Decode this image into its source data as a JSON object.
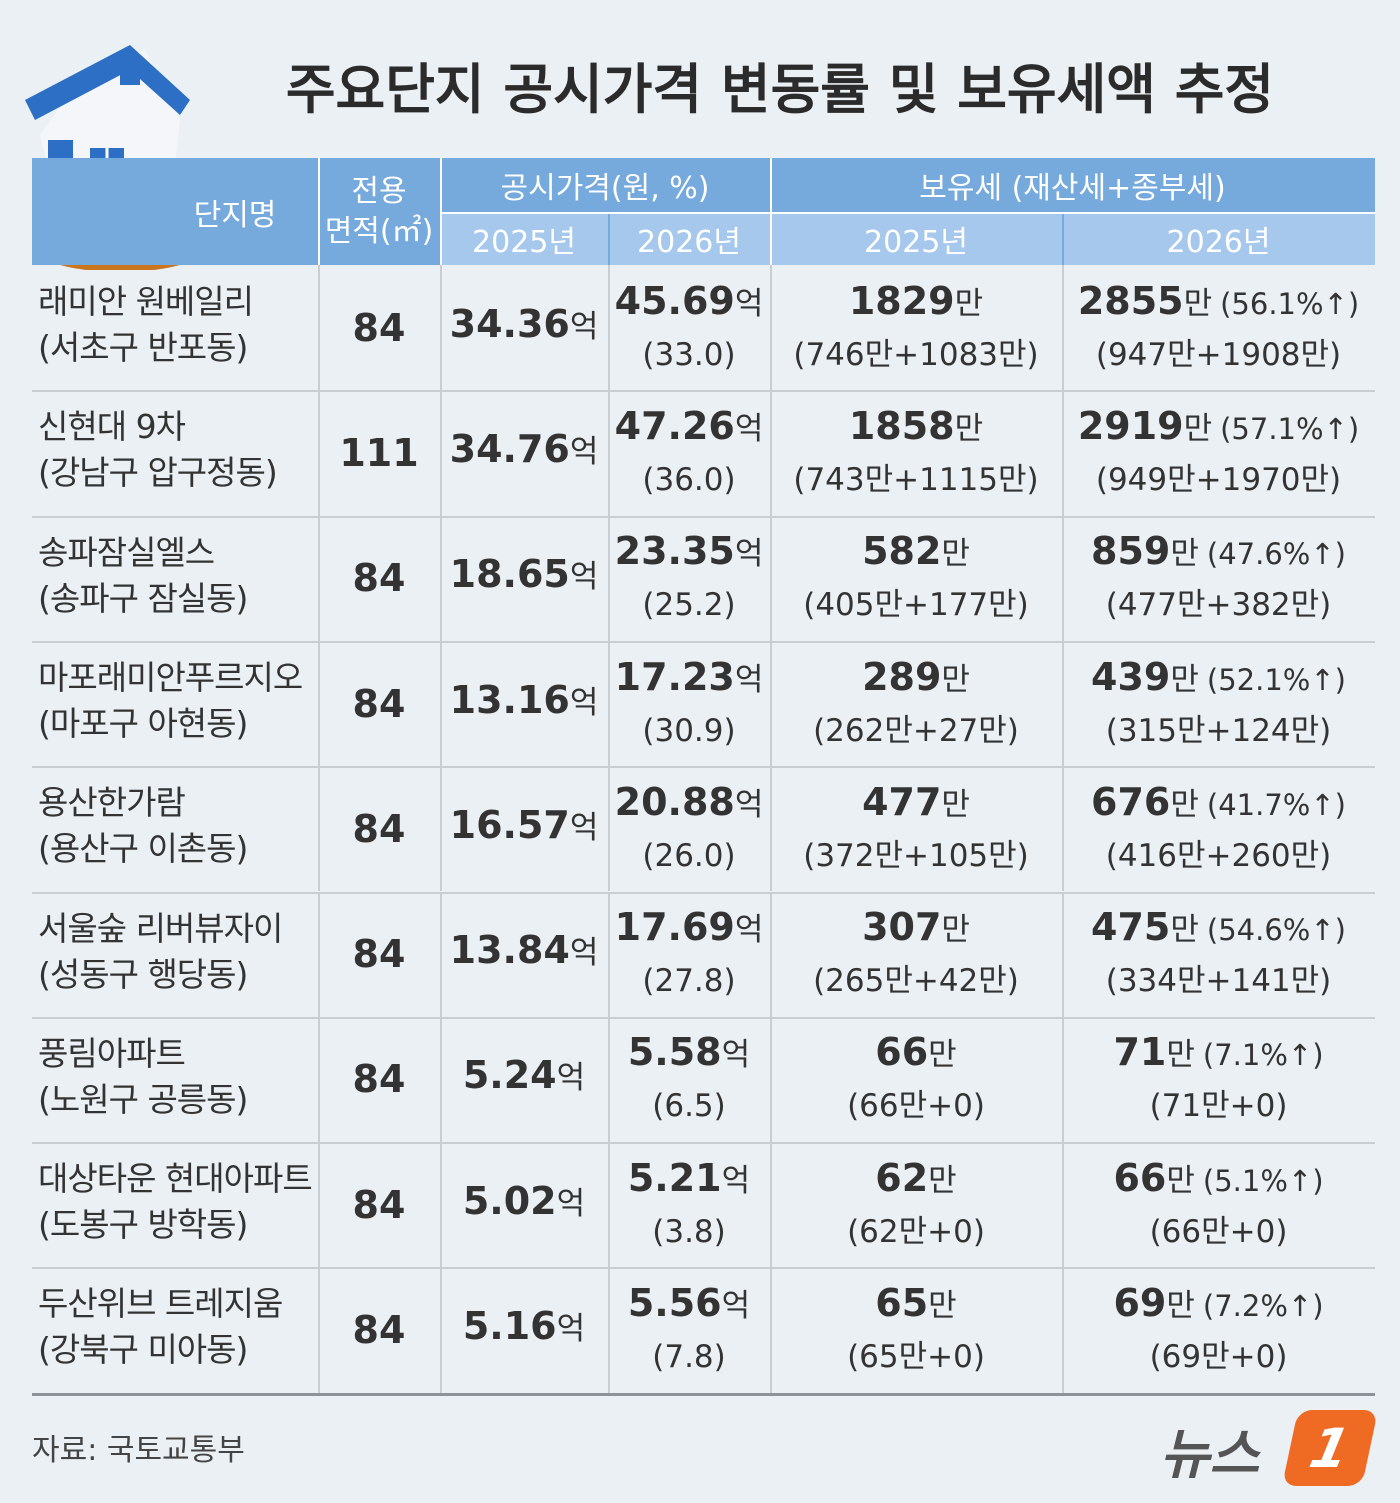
{
  "title": "주요단지 공시가격 변동률 및 보유세액 추정",
  "header": {
    "name": "단지명",
    "area": [
      "전용",
      "면적(㎡)"
    ],
    "price": "공시가격(원, %)",
    "tax": "보유세 (재산세+종부세)",
    "years": [
      "2025년",
      "2026년"
    ]
  },
  "units": {
    "price": "억",
    "tax": "만"
  },
  "table": {
    "rows": [
      {
        "name": "래미안 원베일리",
        "location": "(서초구 반포동)",
        "area": "84",
        "price_2025": "34.36",
        "price_2026": "45.69",
        "price_change": "(33.0)",
        "tax_2025": "1829",
        "tax_2025_detail": "(746만+1083만)",
        "tax_2026": "2855",
        "tax_2026_change": "(56.1%↑)",
        "tax_2026_detail": "(947만+1908만)"
      },
      {
        "name": "신현대 9차",
        "location": "(강남구 압구정동)",
        "area": "111",
        "price_2025": "34.76",
        "price_2026": "47.26",
        "price_change": "(36.0)",
        "tax_2025": "1858",
        "tax_2025_detail": "(743만+1115만)",
        "tax_2026": "2919",
        "tax_2026_change": "(57.1%↑)",
        "tax_2026_detail": "(949만+1970만)"
      },
      {
        "name": "송파잠실엘스",
        "location": "(송파구 잠실동)",
        "area": "84",
        "price_2025": "18.65",
        "price_2026": "23.35",
        "price_change": "(25.2)",
        "tax_2025": "582",
        "tax_2025_detail": "(405만+177만)",
        "tax_2026": "859",
        "tax_2026_change": "(47.6%↑)",
        "tax_2026_detail": "(477만+382만)"
      },
      {
        "name": "마포래미안푸르지오",
        "location": "(마포구 아현동)",
        "area": "84",
        "price_2025": "13.16",
        "price_2026": "17.23",
        "price_change": "(30.9)",
        "tax_2025": "289",
        "tax_2025_detail": "(262만+27만)",
        "tax_2026": "439",
        "tax_2026_change": "(52.1%↑)",
        "tax_2026_detail": "(315만+124만)"
      },
      {
        "name": "용산한가람",
        "location": "(용산구 이촌동)",
        "area": "84",
        "price_2025": "16.57",
        "price_2026": "20.88",
        "price_change": "(26.0)",
        "tax_2025": "477",
        "tax_2025_detail": "(372만+105만)",
        "tax_2026": "676",
        "tax_2026_change": "(41.7%↑)",
        "tax_2026_detail": "(416만+260만)"
      },
      {
        "name": "서울숲 리버뷰자이",
        "location": "(성동구 행당동)",
        "area": "84",
        "price_2025": "13.84",
        "price_2026": "17.69",
        "price_change": "(27.8)",
        "tax_2025": "307",
        "tax_2025_detail": "(265만+42만)",
        "tax_2026": "475",
        "tax_2026_change": "(54.6%↑)",
        "tax_2026_detail": "(334만+141만)"
      },
      {
        "name": "풍림아파트",
        "location": "(노원구 공릉동)",
        "area": "84",
        "price_2025": "5.24",
        "price_2026": "5.58",
        "price_change": "(6.5)",
        "tax_2025": "66",
        "tax_2025_detail": "(66만+0)",
        "tax_2026": "71",
        "tax_2026_change": "(7.1%↑)",
        "tax_2026_detail": "(71만+0)"
      },
      {
        "name": "대상타운 현대아파트",
        "location": "(도봉구 방학동)",
        "area": "84",
        "price_2025": "5.02",
        "price_2026": "5.21",
        "price_change": "(3.8)",
        "tax_2025": "62",
        "tax_2025_detail": "(62만+0)",
        "tax_2026": "66",
        "tax_2026_change": "(5.1%↑)",
        "tax_2026_detail": "(66만+0)"
      },
      {
        "name": "두산위브 트레지움",
        "location": "(강북구 미아동)",
        "area": "84",
        "price_2025": "5.16",
        "price_2026": "5.56",
        "price_change": "(7.8)",
        "tax_2025": "65",
        "tax_2025_detail": "(65만+0)",
        "tax_2026": "69",
        "tax_2026_change": "(7.2%↑)",
        "tax_2026_detail": "(69만+0)"
      }
    ]
  },
  "source": "자료: 국토교통부",
  "logo": {
    "text": "뉴스",
    "mark": "1"
  }
}
